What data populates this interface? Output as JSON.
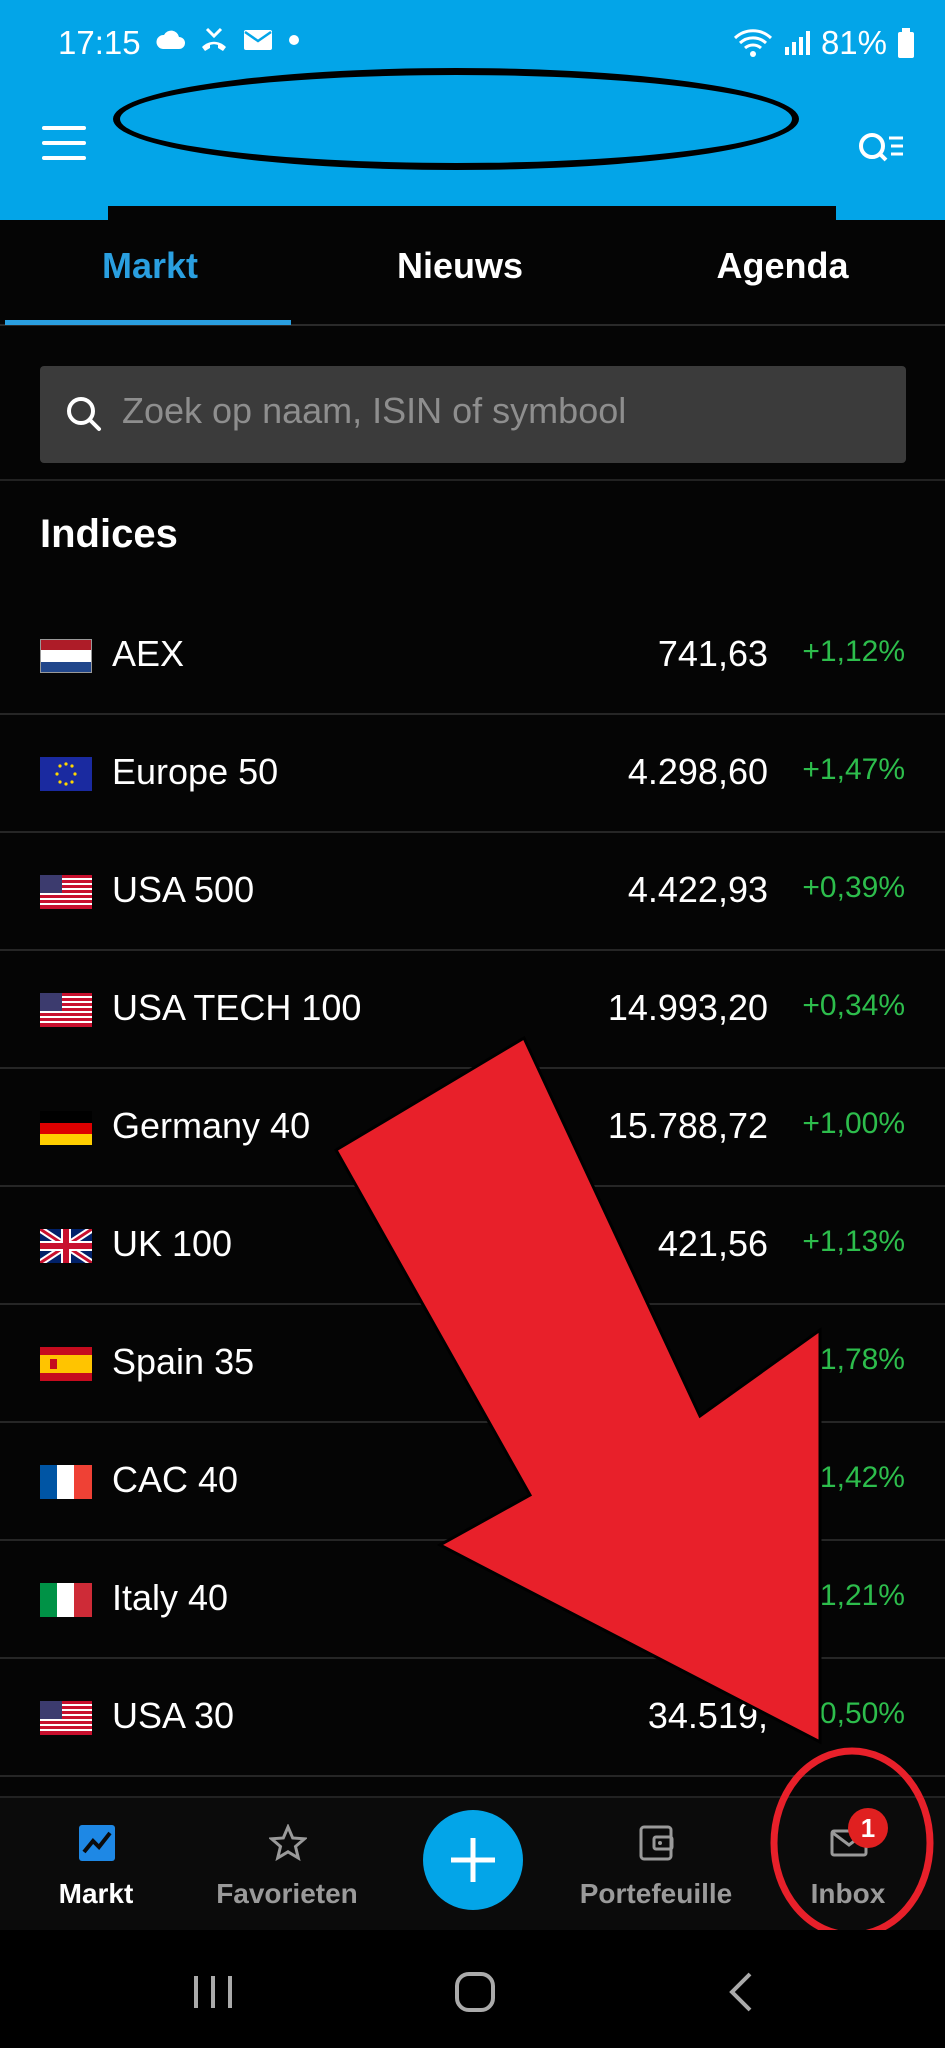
{
  "status_bar": {
    "time": "17:15",
    "battery": "81%"
  },
  "tabs": [
    {
      "label": "Markt",
      "active": true
    },
    {
      "label": "Nieuws",
      "active": false
    },
    {
      "label": "Agenda",
      "active": false
    }
  ],
  "search": {
    "placeholder": "Zoek op naam, ISIN of symbool"
  },
  "section_title": "Indices",
  "indices": [
    {
      "flag": "nl",
      "name": "AEX",
      "price": "741,63",
      "change": "+1,12%"
    },
    {
      "flag": "eu",
      "name": "Europe 50",
      "price": "4.298,60",
      "change": "+1,47%"
    },
    {
      "flag": "us",
      "name": "USA 500",
      "price": "4.422,93",
      "change": "+0,39%"
    },
    {
      "flag": "us",
      "name": "USA TECH 100",
      "price": "14.993,20",
      "change": "+0,34%"
    },
    {
      "flag": "de",
      "name": "Germany 40",
      "price": "15.788,72",
      "change": "+1,00%"
    },
    {
      "flag": "uk",
      "name": "UK 100",
      "price": "421,56",
      "change": "+1,13%"
    },
    {
      "flag": "es",
      "name": "Spain 35",
      "price": "",
      "change": "1,78%"
    },
    {
      "flag": "fr",
      "name": "CAC 40",
      "price": "",
      "change": "1,42%"
    },
    {
      "flag": "it",
      "name": "Italy 40",
      "price": "",
      "change": "1,21%"
    },
    {
      "flag": "us",
      "name": "USA 30",
      "price": "34.519,",
      "change": "0,50%"
    }
  ],
  "bottom_nav": {
    "markt": "Markt",
    "favorieten": "Favorieten",
    "portefeuille": "Portefeuille",
    "inbox": "Inbox",
    "inbox_badge": "1"
  },
  "colors": {
    "accent": "#03a5e8",
    "positive": "#2dbd4c",
    "annotation": "#e8202a"
  }
}
